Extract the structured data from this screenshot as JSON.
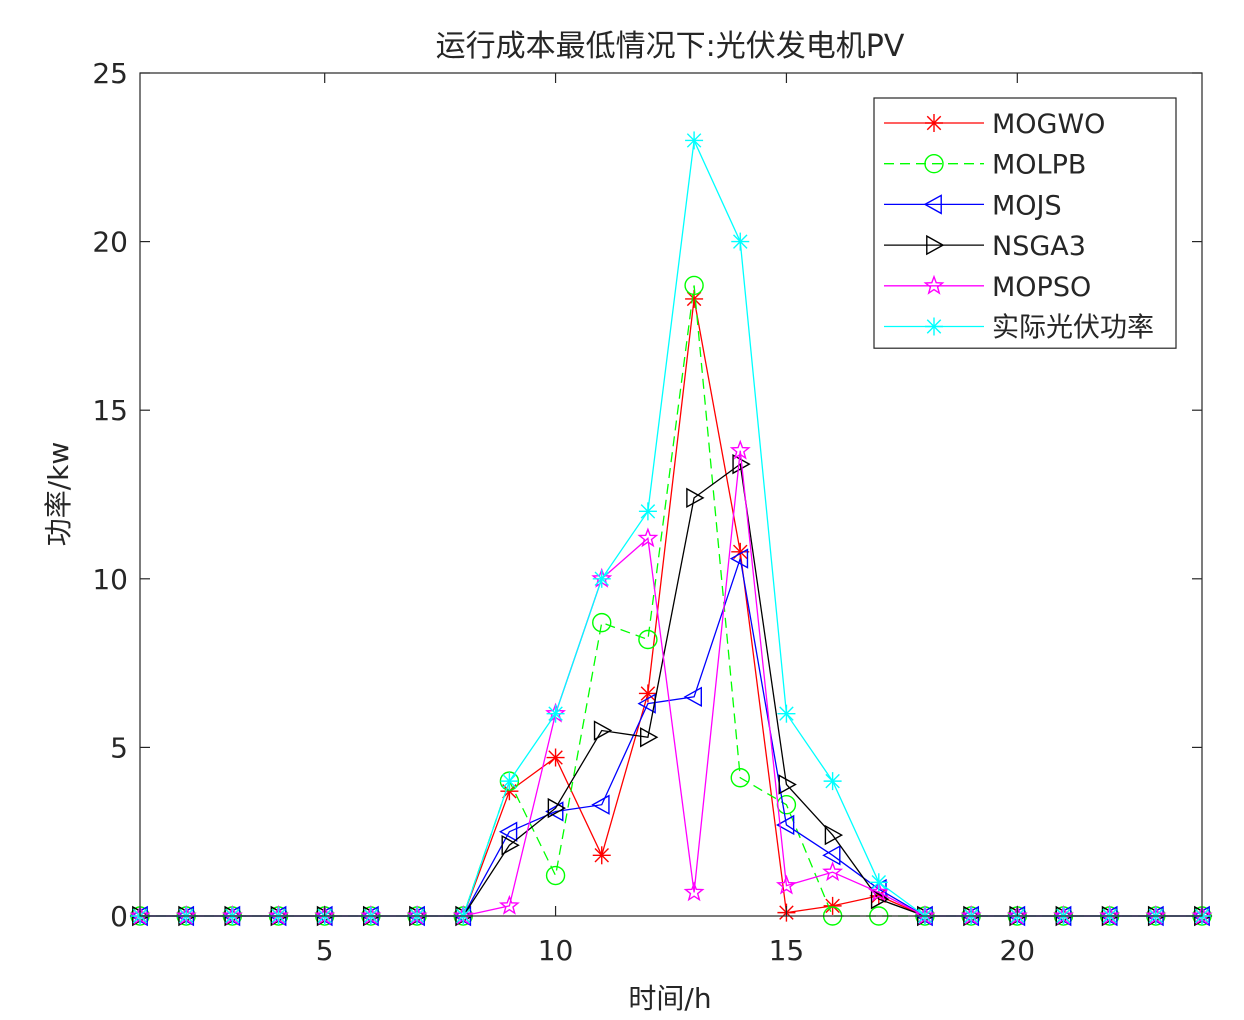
{
  "chart_data": {
    "type": "line",
    "title": "运行成本最低情况下:光伏发电机PV",
    "xlabel": "时间/h",
    "ylabel": "功率/kw",
    "xlim": [
      1,
      24
    ],
    "ylim": [
      0,
      25
    ],
    "xticks": [
      5,
      10,
      15,
      20
    ],
    "yticks": [
      0,
      5,
      10,
      15,
      20,
      25
    ],
    "grid": false,
    "legend_position": "top-right",
    "x": [
      1,
      2,
      3,
      4,
      5,
      6,
      7,
      8,
      9,
      10,
      11,
      12,
      13,
      14,
      15,
      16,
      17,
      18,
      19,
      20,
      21,
      22,
      23,
      24
    ],
    "series": [
      {
        "name": "MOGWO",
        "color": "#ff0000",
        "line_style": "solid",
        "marker": "asterisk",
        "values": [
          0,
          0,
          0,
          0,
          0,
          0,
          0,
          0,
          3.7,
          4.7,
          1.8,
          6.6,
          18.3,
          10.8,
          0.1,
          0.3,
          0.6,
          0,
          0,
          0,
          0,
          0,
          0,
          0
        ]
      },
      {
        "name": "MOLPB",
        "color": "#00ff00",
        "line_style": "dashed",
        "marker": "circle",
        "values": [
          0,
          0,
          0,
          0,
          0,
          0,
          0,
          0,
          4.0,
          1.2,
          8.7,
          8.2,
          18.7,
          4.1,
          3.3,
          0,
          0,
          0,
          0,
          0,
          0,
          0,
          0,
          0
        ]
      },
      {
        "name": "MOJS",
        "color": "#0000ff",
        "line_style": "solid",
        "marker": "triangle-left",
        "values": [
          0,
          0,
          0,
          0,
          0,
          0,
          0,
          0,
          2.5,
          3.1,
          3.3,
          6.3,
          6.5,
          10.6,
          2.7,
          1.8,
          0.8,
          0,
          0,
          0,
          0,
          0,
          0,
          0
        ]
      },
      {
        "name": "NSGA3",
        "color": "#000000",
        "line_style": "solid",
        "marker": "triangle-right",
        "values": [
          0,
          0,
          0,
          0,
          0,
          0,
          0,
          0,
          2.1,
          3.2,
          5.5,
          5.3,
          12.4,
          13.4,
          3.9,
          2.4,
          0.5,
          0,
          0,
          0,
          0,
          0,
          0,
          0
        ]
      },
      {
        "name": "MOPSO",
        "color": "#ff00ff",
        "line_style": "solid",
        "marker": "pentagram",
        "values": [
          0,
          0,
          0,
          0,
          0,
          0,
          0,
          0,
          0.3,
          6.0,
          10.0,
          11.2,
          0.7,
          13.8,
          0.9,
          1.3,
          0.7,
          0,
          0,
          0,
          0,
          0,
          0,
          0
        ]
      },
      {
        "name": "实际光伏功率",
        "color": "#00ffff",
        "line_style": "solid",
        "marker": "asterisk",
        "values": [
          0,
          0,
          0,
          0,
          0,
          0,
          0,
          0,
          4.0,
          6.0,
          10.0,
          12.0,
          23.0,
          20.0,
          6.0,
          4.0,
          1.0,
          0,
          0,
          0,
          0,
          0,
          0,
          0
        ]
      }
    ]
  }
}
